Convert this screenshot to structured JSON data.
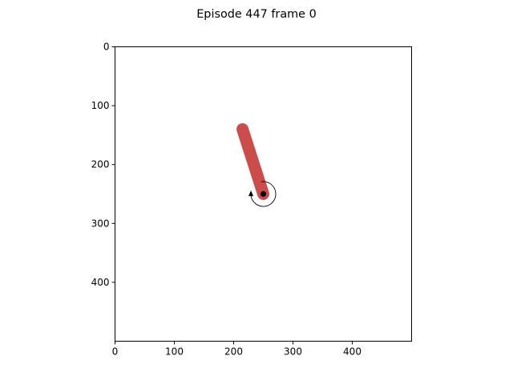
{
  "figure": {
    "title": "Episode 447 frame 0"
  },
  "axes": {
    "xlim": [
      0,
      500
    ],
    "ylim": [
      500,
      0
    ],
    "x_ticks": [
      0,
      100,
      200,
      300,
      400
    ],
    "y_ticks": [
      0,
      100,
      200,
      300,
      400
    ]
  },
  "scene": {
    "pivot": {
      "x": 250,
      "y": 250
    },
    "pole_tip": {
      "x": 215,
      "y": 140
    },
    "pole_color": "#cc4c4c",
    "pivot_color": "#000000",
    "torque_indicator": "counterclockwise-arrow-icon"
  }
}
